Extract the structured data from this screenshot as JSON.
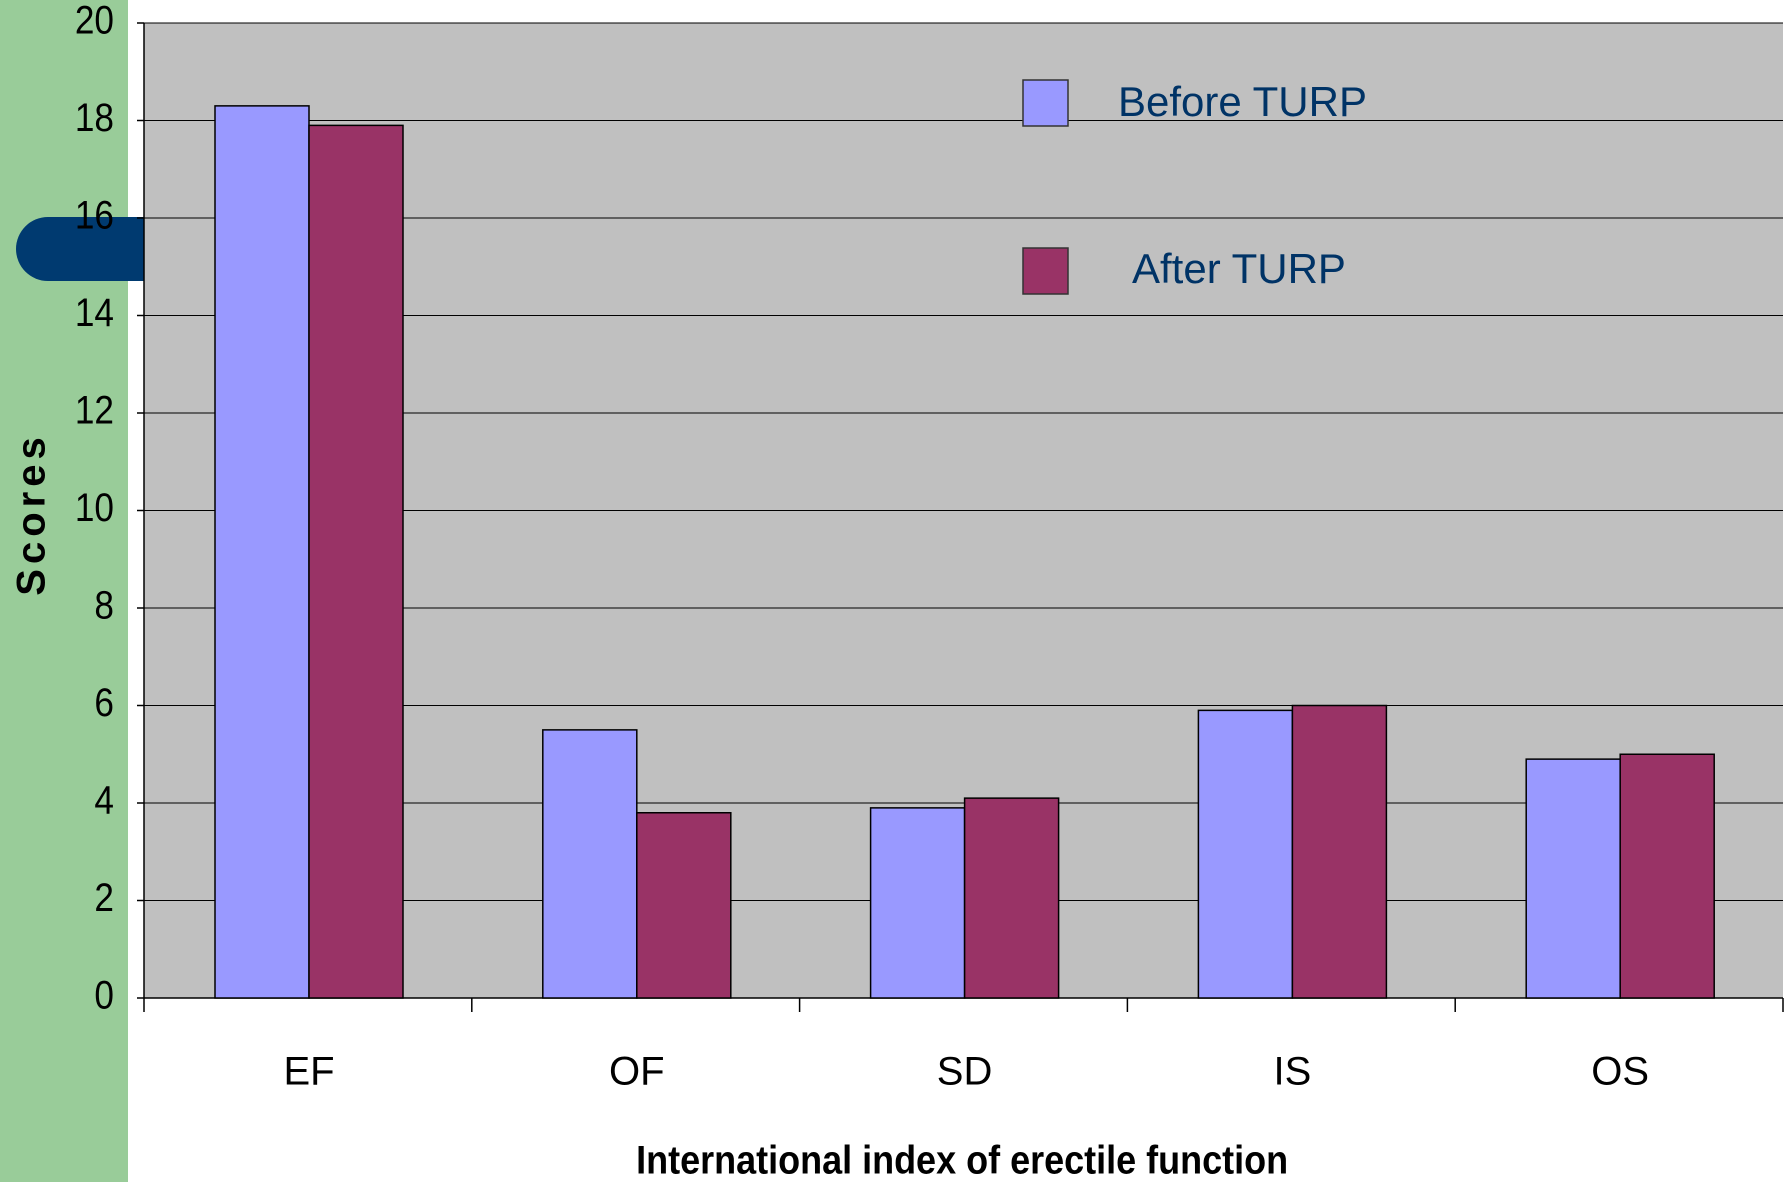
{
  "chart_data": {
    "type": "bar",
    "categories": [
      "EF",
      "OF",
      "SD",
      "IS",
      "OS"
    ],
    "series": [
      {
        "name": "Before TURP",
        "color": "#9999ff",
        "values": [
          18.3,
          5.5,
          3.9,
          5.9,
          4.9
        ]
      },
      {
        "name": "After TURP",
        "color": "#993366",
        "values": [
          17.9,
          3.8,
          4.1,
          6.0,
          5.0
        ]
      }
    ],
    "ylim": [
      0,
      20
    ],
    "yticks": [
      0,
      2,
      4,
      6,
      8,
      10,
      12,
      14,
      16,
      18,
      20
    ],
    "grid": true,
    "ylabel": "Scores",
    "xlabel": "International index of erectile  function"
  }
}
